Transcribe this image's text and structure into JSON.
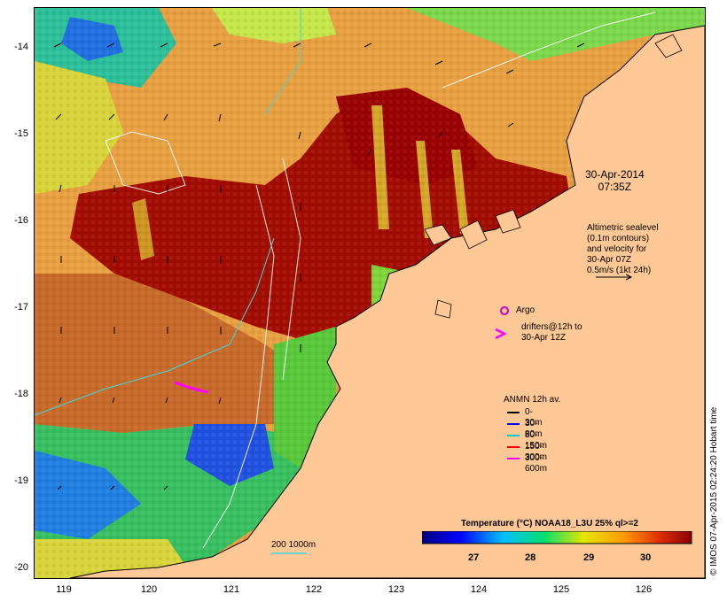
{
  "map": {
    "timestamp_date": "30-Apr-2014",
    "timestamp_time": "07:35Z",
    "altimetry": [
      "Altimetric sealevel",
      "(0.1m contours)",
      "and velocity for",
      "30-Apr 07Z",
      "0.5m/s (1kt 24h)"
    ],
    "argo_label": "Argo",
    "drifters_label": [
      "drifters@12h to",
      "30-Apr 12Z"
    ],
    "anmn_title": "ANMN 12h av.",
    "anmn_legend": [
      {
        "label": "0-30m",
        "color": "#000000"
      },
      {
        "label": "30-80m",
        "color": "#0000ff"
      },
      {
        "label": "80-150m",
        "color": "#00cccc"
      },
      {
        "label": "150-300m",
        "color": "#ff0000"
      },
      {
        "label": "300-600m",
        "color": "#ff00ff"
      }
    ],
    "depth_contours_label": "200 1000m",
    "colorbar_title": "Temperature (°C) NOAA18_L3U 25% ql>=2",
    "colorbar_ticks": [
      "27",
      "28",
      "29",
      "30"
    ],
    "credit": "© IMOS 07-Apr-2015 02:24:20 Hobart time",
    "y_ticks": [
      "-14",
      "-15",
      "-16",
      "-17",
      "-18",
      "-19",
      "-20"
    ],
    "x_ticks": [
      "119",
      "120",
      "121",
      "122",
      "123",
      "124",
      "125",
      "126"
    ],
    "colors": {
      "land": "#fdc896",
      "hot": "#a80000",
      "argo": "#cc00cc",
      "drifter": "#ff00ff"
    }
  }
}
